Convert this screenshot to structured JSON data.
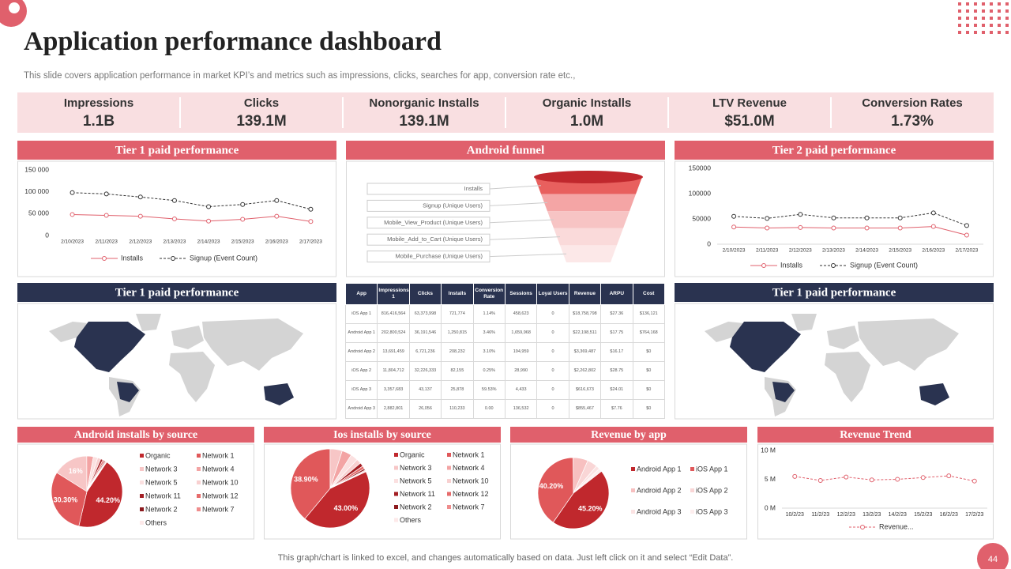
{
  "header": {
    "title": "Application performance dashboard",
    "subtitle": "This slide covers application performance in market KPI’s and metrics such as impressions, clicks, searches for app, conversion rate etc.,"
  },
  "kpis": [
    {
      "label": "Impressions",
      "value": "1.1B"
    },
    {
      "label": "Clicks",
      "value": "139.1M"
    },
    {
      "label": "Nonorganic Installs",
      "value": "139.1M"
    },
    {
      "label": "Organic Installs",
      "value": "1.0M"
    },
    {
      "label": "LTV Revenue",
      "value": "$51.0M"
    },
    {
      "label": "Conversion Rates",
      "value": "1.73%"
    }
  ],
  "funnel": {
    "title": "Android funnel",
    "stages": [
      "Installs",
      "Signup  (Unique Users)",
      "Mobile_View_Product  (Unique Users)",
      "Mobile_Add_to_Cart  (Unique Users)",
      "Mobile_Purchase  (Unique Users)"
    ]
  },
  "maps": [
    {
      "title": "Tier 1 paid performance"
    },
    {
      "title": "Tier 1 paid performance"
    }
  ],
  "table": {
    "headers": [
      "App",
      "Impressions 1",
      "Clicks",
      "Installs",
      "Conversion Rate",
      "Sessions",
      "Loyal Users",
      "Revenue",
      "ARPU",
      "Cost"
    ],
    "rows": [
      [
        "iOS App 1",
        "816,416,564",
        "63,373,998",
        "721,774",
        "1.14%",
        "458,623",
        "0",
        "$18,758,798",
        "$27.36",
        "$136,121"
      ],
      [
        "Android App 1",
        "202,800,524",
        "36,191,546",
        "1,250,815",
        "3.46%",
        "1,659,968",
        "0",
        "$22,198,511",
        "$17.75",
        "$764,168"
      ],
      [
        "Android App 2",
        "13,691,459",
        "6,721,236",
        "208,232",
        "3.10%",
        "194,959",
        "0",
        "$3,369,487",
        "$16.17",
        "$0"
      ],
      [
        "iOS App 2",
        "11,804,712",
        "32,226,333",
        "82,155",
        "0.25%",
        "28,990",
        "0",
        "$2,262,802",
        "$28.75",
        "$0"
      ],
      [
        "iOS App 3",
        "3,357,683",
        "43,137",
        "25,878",
        "59.53%",
        "4,433",
        "0",
        "$616,673",
        "$24.01",
        "$0"
      ],
      [
        "Android App 3",
        "2,882,801",
        "26,056",
        "110,233",
        "0.00",
        "136,532",
        "0",
        "$855,467",
        "$7.76",
        "$0"
      ]
    ]
  },
  "chart_data": [
    {
      "type": "line",
      "title": "Tier 1 paid performance",
      "categories": [
        "2/10/2023",
        "2/11/2023",
        "2/12/2023",
        "2/13/2023",
        "2/14/2023",
        "2/15/2023",
        "2/16/2023",
        "2/17/2023"
      ],
      "series": [
        {
          "name": "Installs",
          "color": "#e0606c",
          "dashed": false,
          "values": [
            48000,
            46000,
            44000,
            38000,
            33000,
            37000,
            44000,
            32000
          ]
        },
        {
          "name": "Signup (Event Count)",
          "color": "#333333",
          "dashed": true,
          "values": [
            98000,
            95000,
            88000,
            80000,
            66000,
            71000,
            80000,
            60000
          ]
        }
      ],
      "ylim": [
        0,
        150000
      ],
      "yticks": [
        0,
        {
          "value": 50000,
          "label": "50 000"
        },
        {
          "value": 100000,
          "label": "100 000"
        },
        {
          "value": 150000,
          "label": "150 000"
        }
      ],
      "grid": false
    },
    {
      "type": "line",
      "title": "Tier 2 paid performance",
      "categories": [
        "2/10/2023",
        "2/11/2023",
        "2/12/2023",
        "2/13/2023",
        "2/14/2023",
        "2/15/2023",
        "2/16/2023",
        "2/17/2023"
      ],
      "series": [
        {
          "name": "Installs",
          "color": "#e0606c",
          "dashed": false,
          "values": [
            34000,
            32000,
            33000,
            32000,
            32000,
            32000,
            35000,
            18000
          ]
        },
        {
          "name": "Signup (Event Count)",
          "color": "#333333",
          "dashed": true,
          "values": [
            55000,
            51000,
            59000,
            52000,
            52000,
            52000,
            62000,
            37000
          ]
        }
      ],
      "ylim": [
        0,
        150000
      ],
      "yticks": [
        0,
        50000,
        100000,
        150000
      ],
      "grid": false
    },
    {
      "type": "pie",
      "title": "Android installs by source",
      "categories": [
        "Organic",
        "Network 1",
        "Network 3",
        "Network 4",
        "Network 5",
        "Network 10",
        "Network 11",
        "Network 12",
        "Network 2",
        "Network 7",
        "Others"
      ],
      "values": [
        44.2,
        30.3,
        16,
        3,
        2,
        1.5,
        1,
        0.8,
        0.5,
        0.4,
        0.3
      ],
      "value_labels": [
        "44.20%",
        "30.30%",
        "16%",
        null,
        null,
        null,
        null,
        null,
        null,
        null,
        null
      ],
      "colors": [
        "#c0282d",
        "#e0585a",
        "#f7c6c6",
        "#f3a4a4",
        "#fbe0e0",
        "#f8d0d0",
        "#a31f24",
        "#e66b6b",
        "#8c1a1e",
        "#ef8d8d",
        "#fde9e9"
      ]
    },
    {
      "type": "pie",
      "title": "Ios installs by source",
      "categories": [
        "Organic",
        "Network 1",
        "Network 3",
        "Network 4",
        "Network 5",
        "Network 10",
        "Network 11",
        "Network 12",
        "Network 2",
        "Network 7",
        "Others"
      ],
      "values": [
        43,
        38.9,
        5,
        4,
        3,
        2,
        1.5,
        1.2,
        0.7,
        0.4,
        0.3
      ],
      "value_labels": [
        "43.00%",
        "38.90%",
        null,
        null,
        null,
        null,
        null,
        null,
        null,
        null,
        null
      ],
      "colors": [
        "#c0282d",
        "#e0585a",
        "#f7c6c6",
        "#f3a4a4",
        "#fbe0e0",
        "#f8d0d0",
        "#a31f24",
        "#e66b6b",
        "#8c1a1e",
        "#ef8d8d",
        "#fde9e9"
      ]
    },
    {
      "type": "pie",
      "title": "Revenue by app",
      "categories": [
        "Android App 1",
        "iOS App 1",
        "Android App 2",
        "iOS App 2",
        "Android App 3",
        "iOS App 3"
      ],
      "values": [
        45.2,
        40.2,
        6.8,
        4.6,
        1.7,
        1.5
      ],
      "value_labels": [
        "45.20%",
        "40.20%",
        null,
        null,
        null,
        null
      ],
      "colors": [
        "#c0282d",
        "#e0585a",
        "#f7c0c0",
        "#f9d6d6",
        "#fbe3e3",
        "#fdeeee"
      ]
    },
    {
      "type": "line",
      "title": "Revenue Trend",
      "categories": [
        "10/2/23",
        "11/2/23",
        "12/2/23",
        "13/2/23",
        "14/2/23",
        "15/2/23",
        "16/2/23",
        "17/2/23"
      ],
      "series": [
        {
          "name": "Revenue...",
          "color": "#e0606c",
          "dashed": true,
          "values": [
            5.5,
            4.8,
            5.4,
            4.9,
            5.0,
            5.3,
            5.6,
            4.7
          ]
        }
      ],
      "ylim": [
        0,
        10
      ],
      "yticks": [
        {
          "value": 0,
          "label": "0 M"
        },
        {
          "value": 5,
          "label": "5 M"
        },
        {
          "value": 10,
          "label": "10 M"
        }
      ],
      "grid": false
    }
  ],
  "footer": {
    "note": "This graph/chart is linked to excel,  and changes automatically based on data. Just left click on it and select “Edit Data”.",
    "page": "44"
  }
}
